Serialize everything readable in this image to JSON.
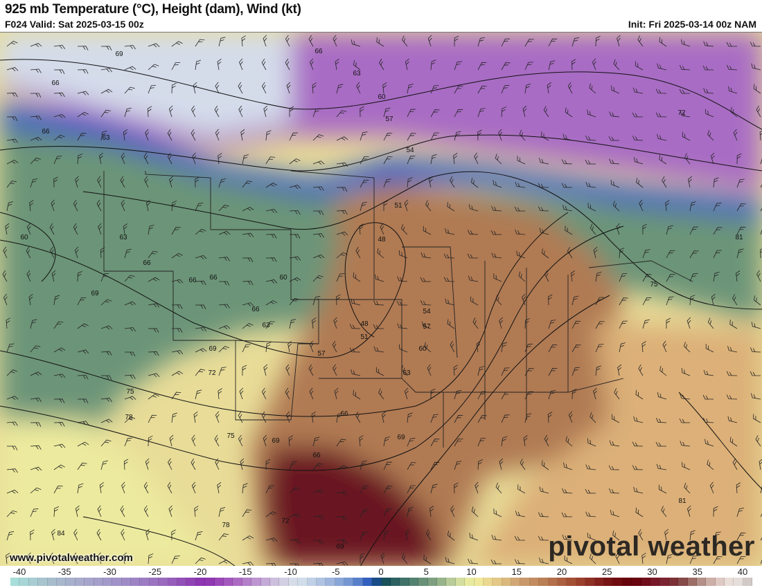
{
  "header": {
    "title": "925 mb Temperature (°C), Height (dam), Wind (kt)",
    "valid": "F024 Valid: Sat 2025-03-15 00z",
    "init": "Init: Fri 2025-03-14 00z NAM"
  },
  "map": {
    "contour_labels": [
      "69",
      "66",
      "66",
      "63",
      "60",
      "57",
      "54",
      "51",
      "48",
      "63",
      "66",
      "60",
      "63",
      "66",
      "66",
      "66",
      "60",
      "66",
      "63",
      "69",
      "72",
      "75",
      "78",
      "75",
      "69",
      "66",
      "69",
      "72",
      "78",
      "84",
      "48",
      "51",
      "54",
      "57",
      "57",
      "60",
      "63",
      "66",
      "69",
      "72",
      "75",
      "81",
      "81",
      "69"
    ],
    "watermark_url": "www.pivotalweather.com",
    "watermark_brand": "pivotal weather"
  },
  "colorbar": {
    "ticks": [
      "-40",
      "-35",
      "-30",
      "-25",
      "-20",
      "-15",
      "-10",
      "-5",
      "0",
      "5",
      "10",
      "15",
      "20",
      "25",
      "30",
      "35",
      "40"
    ],
    "range": [
      -40,
      40
    ],
    "unit": "°C",
    "color_stops": [
      [
        -40,
        "#a8e2dc"
      ],
      [
        -36,
        "#a8c0cc"
      ],
      [
        -32,
        "#a8a8cc"
      ],
      [
        -28,
        "#a090c8"
      ],
      [
        -24,
        "#9a70c0"
      ],
      [
        -19,
        "#8c30b0"
      ],
      [
        -16,
        "#a860c0"
      ],
      [
        -13,
        "#c0a0d4"
      ],
      [
        -11,
        "#d0c8e0"
      ],
      [
        -9,
        "#d8e4ec"
      ],
      [
        -6,
        "#a8bce0"
      ],
      [
        -3,
        "#6a90d0"
      ],
      [
        -1,
        "#2050b8"
      ],
      [
        0,
        "#104a58"
      ],
      [
        3,
        "#4a7a6c"
      ],
      [
        6,
        "#88a884"
      ],
      [
        8,
        "#c8d8a0"
      ],
      [
        10,
        "#f2f0a0"
      ],
      [
        12,
        "#e8d08c"
      ],
      [
        15,
        "#cca070"
      ],
      [
        18,
        "#b87850"
      ],
      [
        21,
        "#a04830"
      ],
      [
        24,
        "#7c1818"
      ],
      [
        27,
        "#640008"
      ],
      [
        30,
        "#7c1c30"
      ],
      [
        32,
        "#7a3838"
      ],
      [
        34,
        "#a88078"
      ],
      [
        36,
        "#d8c0b8"
      ],
      [
        38,
        "#f0e8e4"
      ],
      [
        40,
        "#c8c0bc"
      ]
    ]
  }
}
